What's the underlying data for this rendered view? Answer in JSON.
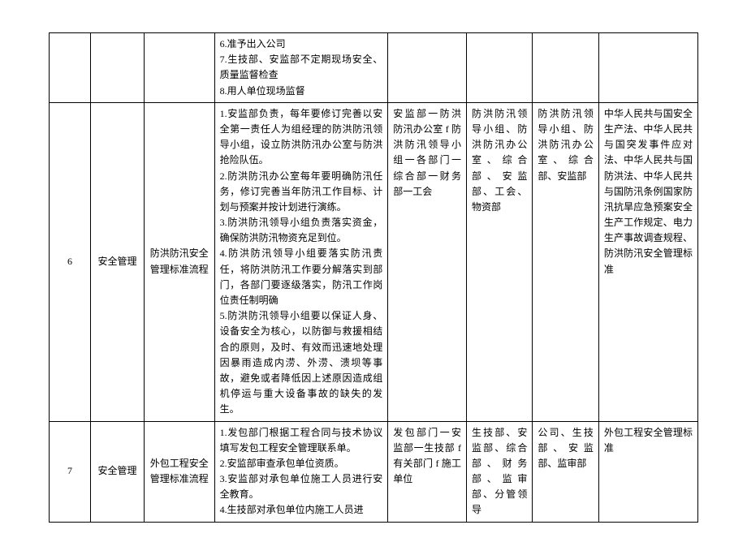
{
  "table": {
    "border_color": "#000000",
    "background_color": "#ffffff",
    "text_color": "#000000",
    "font_family": "SimSun",
    "font_size": 12,
    "rows": [
      {
        "num": "",
        "category": "",
        "process": "",
        "content": "6.准予出入公司\n7.生技部、安监部不定期现场安全、质量监督检查\n8.用人单位现场监督",
        "flow": "",
        "dept1": "",
        "dept2": "",
        "law": ""
      },
      {
        "num": "6",
        "category": "安全管理",
        "process": "防洪防汛安全管理标准流程",
        "content": "1.安监部负责，每年要修订完善以安全第一责任人为组经理的防洪防汛领导小组，设立防洪防汛办公室与防洪抢险队伍。\n2.防洪防汛办公室每年要明确防汛任务，修订完善当年防汛工作目标、计划与预案并按计划进行演练。\n3.防洪防汛领导小组负责落实资金，确保防洪防汛物资充足到位。\n4.防洪防汛领导小组要落实防汛责任，将防洪防汛工作要分解落实到部门，各部门要逐级落实，防汛工作岗位责任制明确\n5.防洪防汛领导小组要以保证人身、设备安全为核心，以防御与救援相结合的原则，及时、有效而迅速地处理因暴雨造成内涝、外涝、溃坝等事故，避免或者降低因上述原因造成组机停运与重大设备事故的缺失的发生。",
        "flow": "安监部一防洪防汛办公室 f 防洪防汛领导小组一各部门一综合部一财务部一工会",
        "dept1": "防洪防汛领导小组、防洪防汛办公室、综合部、安监部、工会、物资部",
        "dept2": "防洪防汛领导小组、防洪防汛办公室、综合部、安监部",
        "law": "中华人民共与国安全生产法、中华人民共与国突发事件应对法、中华人民共与国防洪法、中华人民共与国防汛条例国家防汛抗旱应急预案安全生产工作规定、电力生产事故调查规程、防洪防汛安全管理标准"
      },
      {
        "num": "7",
        "category": "安全管理",
        "process": "外包工程安全管理标准流程",
        "content": "1.发包部门根据工程合同与技术协议填写发包工程安全管理联系单。\n2.安监部审查承包单位资质。\n3.安监部对承包单位施工人员进行安全教育。\n4.生技部对承包单位内施工人员进",
        "flow": "发包部门一安监部一生技部 f 有关部门 f 施工单位",
        "dept1": "生技部、安监部、综合部、财务部、监审部、分管领导",
        "dept2": "公司、生技部、安监部、监审部",
        "law": "外包工程安全管理标准"
      }
    ]
  }
}
